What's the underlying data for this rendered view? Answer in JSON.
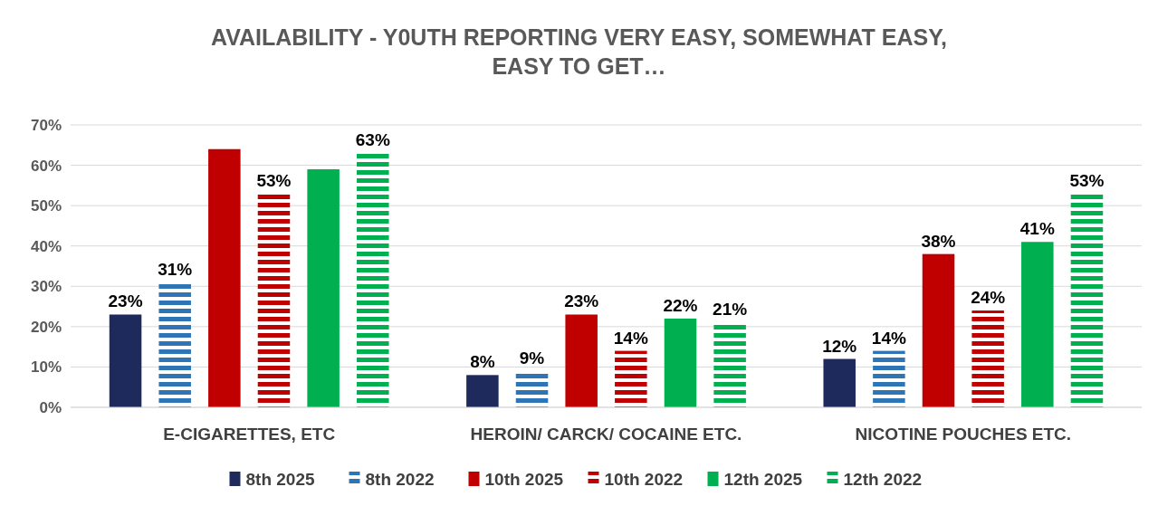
{
  "chart_data": {
    "type": "bar",
    "title": "AVAILABILITY - Y0UTH REPORTING VERY EASY, SOMEWHAT EASY, EASY TO GET…",
    "categories": [
      "E-CIGARETTES, ETC",
      "HEROIN/ CARCK/ COCAINE ETC.",
      "NICOTINE POUCHES ETC."
    ],
    "series": [
      {
        "name": "8th 2025",
        "color": "#1f2a5c",
        "values": [
          23,
          8,
          12
        ],
        "value_labels": [
          "23%",
          "8%",
          "12%"
        ]
      },
      {
        "name": "8th 2022",
        "color": "#2e75b6",
        "line_style": "dashed",
        "values": [
          31,
          9,
          14
        ],
        "value_labels": [
          "31%",
          "9%",
          "14%"
        ]
      },
      {
        "name": "10th 2025",
        "color": "#c00000",
        "values": [
          64,
          23,
          38
        ],
        "value_labels": [
          null,
          "23%",
          "38%"
        ]
      },
      {
        "name": "10th 2022",
        "color": "#c00000",
        "line_style": "dashed",
        "values": [
          53,
          14,
          24
        ],
        "value_labels": [
          "53%",
          "14%",
          "24%"
        ]
      },
      {
        "name": "12th 2025",
        "color": "#00b050",
        "values": [
          59,
          22,
          41
        ],
        "value_labels": [
          null,
          "22%",
          "41%"
        ]
      },
      {
        "name": "12th 2022",
        "color": "#00b050",
        "line_style": "dashed",
        "values": [
          63,
          21,
          53
        ],
        "value_labels": [
          "63%",
          "21%",
          "53%"
        ]
      }
    ],
    "ylim": [
      0,
      70
    ],
    "yticks": [
      {
        "value": 0,
        "label": "0%"
      },
      {
        "value": 10,
        "label": "10%"
      },
      {
        "value": 20,
        "label": "20%"
      },
      {
        "value": 30,
        "label": "30%"
      },
      {
        "value": 40,
        "label": "40%"
      },
      {
        "value": 50,
        "label": "50%"
      },
      {
        "value": 60,
        "label": "60%"
      },
      {
        "value": 70,
        "label": "70%"
      }
    ],
    "grid": "y",
    "legend": "bottom"
  }
}
